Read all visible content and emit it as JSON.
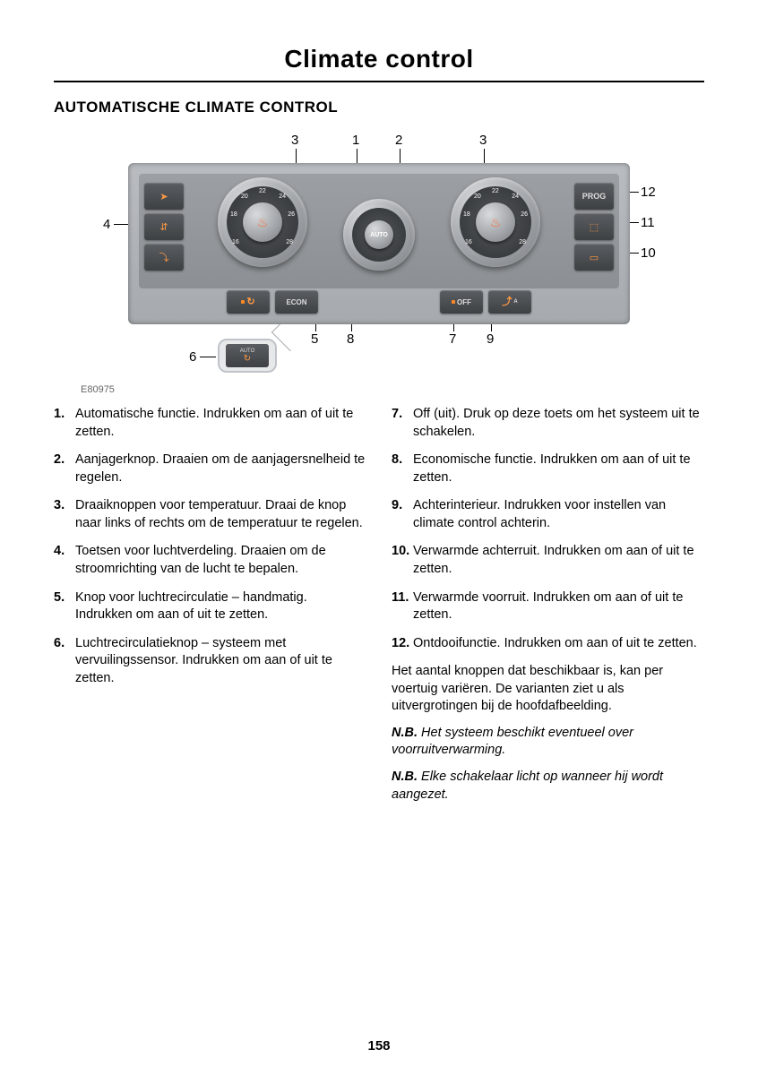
{
  "page": {
    "title": "Climate control",
    "section_heading": "AUTOMATISCHE CLIMATE CONTROL",
    "diagram_code": "E80975",
    "page_number": "158"
  },
  "diagram": {
    "callouts": [
      "1",
      "2",
      "3",
      "4",
      "5",
      "6",
      "7",
      "8",
      "9",
      "10",
      "11",
      "12"
    ],
    "dial_numbers": [
      "16",
      "18",
      "20",
      "22",
      "24",
      "26",
      "28"
    ],
    "center_knob_label": "AUTO",
    "econ_label": "ECON",
    "off_label": "OFF",
    "prog_label": "PROG",
    "auto_detail_label": "AUTO",
    "colors": {
      "panel_bg_top": "#b9bcc0",
      "panel_bg_bot": "#a6aaae",
      "btn_bg_top": "#5a5d61",
      "btn_bg_bot": "#3e4144",
      "icon_orange": "#ff9944",
      "led": "#ff8822",
      "outline": "#c0c4c8"
    }
  },
  "list_left": [
    {
      "n": "1.",
      "t": "Automatische functie. Indrukken om aan of uit te zetten."
    },
    {
      "n": "2.",
      "t": "Aanjagerknop. Draaien om de aanjagersnelheid te regelen."
    },
    {
      "n": "3.",
      "t": "Draaiknoppen voor temperatuur. Draai de knop naar links of rechts om de temperatuur te regelen."
    },
    {
      "n": "4.",
      "t": "Toetsen voor luchtverdeling. Draaien om de stroomrichting van de lucht te bepalen."
    },
    {
      "n": "5.",
      "t": "Knop voor luchtrecirculatie – handmatig. Indrukken om aan of uit te zetten."
    },
    {
      "n": "6.",
      "t": "Luchtrecirculatieknop – systeem met vervuilingssensor. Indrukken om aan of uit te zetten."
    }
  ],
  "list_right": [
    {
      "n": "7.",
      "t": "Off (uit). Druk op deze toets om het systeem uit te schakelen."
    },
    {
      "n": "8.",
      "t": "Economische functie. Indrukken om aan of uit te zetten."
    },
    {
      "n": "9.",
      "t": "Achterinterieur. Indrukken voor instellen van climate control achterin."
    },
    {
      "n": "10.",
      "t": "Verwarmde achterruit. Indrukken om aan of uit te zetten."
    },
    {
      "n": "11.",
      "t": "Verwarmde voorruit. Indrukken om aan of uit te zetten."
    },
    {
      "n": "12.",
      "t": "Ontdooifunctie. Indrukken om aan of uit te zetten."
    }
  ],
  "paragraphs": [
    "Het aantal knoppen dat beschikbaar is, kan per voertuig variëren. De varianten ziet u als uitvergrotingen bij de hoofdafbeelding."
  ],
  "notes": [
    {
      "label": "N.B.",
      "text": " Het systeem beschikt eventueel over voorruitverwarming."
    },
    {
      "label": "N.B.",
      "text": " Elke schakelaar licht op wanneer hij wordt aangezet."
    }
  ]
}
